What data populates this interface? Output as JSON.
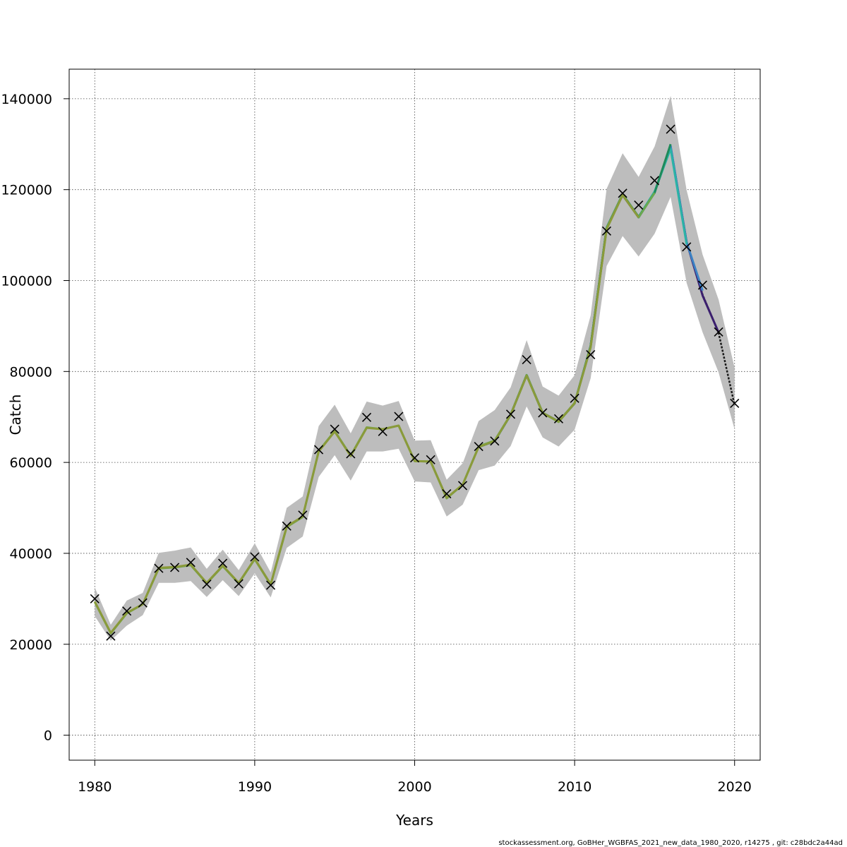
{
  "chart_data": {
    "type": "line",
    "xlabel": "Years",
    "ylabel": "Catch",
    "xlim": [
      1978.4,
      2021.6
    ],
    "ylim": [
      -5500,
      146500
    ],
    "x_ticks": [
      1980,
      1990,
      2000,
      2010,
      2020
    ],
    "y_ticks": [
      0,
      20000,
      40000,
      60000,
      80000,
      100000,
      120000,
      140000
    ],
    "grid": true,
    "observed": {
      "marker": "x",
      "points": [
        [
          1980,
          30000
        ],
        [
          1981,
          21800
        ],
        [
          1982,
          27300
        ],
        [
          1983,
          29100
        ],
        [
          1984,
          36700
        ],
        [
          1985,
          36900
        ],
        [
          1986,
          38000
        ],
        [
          1987,
          33200
        ],
        [
          1988,
          37800
        ],
        [
          1989,
          33300
        ],
        [
          1990,
          39200
        ],
        [
          1991,
          33000
        ],
        [
          1992,
          46000
        ],
        [
          1993,
          48400
        ],
        [
          1994,
          62800
        ],
        [
          1995,
          67300
        ],
        [
          1996,
          61900
        ],
        [
          1997,
          69900
        ],
        [
          1998,
          66800
        ],
        [
          1999,
          70100
        ],
        [
          2000,
          61000
        ],
        [
          2001,
          60600
        ],
        [
          2002,
          53100
        ],
        [
          2003,
          54900
        ],
        [
          2004,
          63500
        ],
        [
          2005,
          64700
        ],
        [
          2006,
          70600
        ],
        [
          2007,
          82600
        ],
        [
          2008,
          70900
        ],
        [
          2009,
          69600
        ],
        [
          2010,
          74100
        ],
        [
          2011,
          83700
        ],
        [
          2012,
          110900
        ],
        [
          2013,
          119200
        ],
        [
          2014,
          116600
        ],
        [
          2015,
          122000
        ],
        [
          2016,
          133300
        ],
        [
          2017,
          107400
        ],
        [
          2018,
          99000
        ],
        [
          2019,
          88700
        ],
        [
          2020,
          73000
        ]
      ]
    },
    "estimate_years": [
      1980,
      1981,
      1982,
      1983,
      1984,
      1985,
      1986,
      1987,
      1988,
      1989,
      1990,
      1991,
      1992,
      1993,
      1994,
      1995,
      1996,
      1997,
      1998,
      1999,
      2000,
      2001,
      2002,
      2003,
      2004,
      2005,
      2006,
      2007,
      2008,
      2009,
      2010,
      2011,
      2012,
      2013,
      2014,
      2015,
      2016,
      2017,
      2018,
      2019,
      2020
    ],
    "ci_upper": [
      32500,
      24300,
      29600,
      31300,
      40100,
      40600,
      41300,
      36600,
      40800,
      36300,
      42200,
      35800,
      50000,
      52500,
      68000,
      72700,
      66400,
      73400,
      72500,
      73500,
      64800,
      64900,
      56200,
      59800,
      69100,
      71500,
      76500,
      86900,
      76700,
      74700,
      79200,
      92300,
      120200,
      128000,
      122800,
      129500,
      140600,
      119900,
      105700,
      95800,
      80800
    ],
    "ci_lower": [
      26200,
      20800,
      24100,
      26400,
      33500,
      33500,
      33900,
      30400,
      34100,
      30600,
      35600,
      30300,
      41200,
      43700,
      56800,
      61600,
      56000,
      62400,
      62400,
      63000,
      55800,
      55600,
      48100,
      50700,
      58300,
      59300,
      63600,
      72300,
      65500,
      63500,
      67200,
      78500,
      103200,
      109800,
      105300,
      110300,
      118400,
      99500,
      88600,
      79800,
      67300
    ],
    "series": [
      {
        "color": "#1a1a1a",
        "x": [
          2004,
          2005,
          2006,
          2007,
          2008,
          2009,
          2010,
          2011,
          2012,
          2013,
          2014,
          2015,
          2016,
          2017,
          2018,
          2019,
          2020
        ],
        "values": [
          63400,
          64600,
          70400,
          79200,
          70800,
          69000,
          73000,
          85500,
          111500,
          118900,
          114000,
          119500,
          129500,
          108600,
          96900,
          88500,
          72600
        ],
        "dashed": true
      },
      {
        "color": "#3b1f6e",
        "x": [
          2004,
          2005,
          2006,
          2007,
          2008,
          2009,
          2010,
          2011,
          2012,
          2013,
          2014,
          2015,
          2016,
          2017,
          2018,
          2019
        ],
        "values": [
          63400,
          64700,
          70500,
          79200,
          70900,
          69000,
          73000,
          85600,
          111600,
          118800,
          113900,
          119400,
          129500,
          108500,
          96700,
          88600
        ]
      },
      {
        "color": "#3b82c4",
        "x": [
          2004,
          2005,
          2006,
          2007,
          2008,
          2009,
          2010,
          2011,
          2012,
          2013,
          2014,
          2015,
          2016,
          2017,
          2018
        ],
        "values": [
          63400,
          64700,
          70500,
          79200,
          70900,
          69000,
          73000,
          85600,
          111600,
          118900,
          113900,
          119400,
          129600,
          108400,
          97800
        ]
      },
      {
        "color": "#2bb3a6",
        "x": [
          2004,
          2005,
          2006,
          2007,
          2008,
          2009,
          2010,
          2011,
          2012,
          2013,
          2014,
          2015,
          2016,
          2017
        ],
        "values": [
          63400,
          64700,
          70500,
          79200,
          70900,
          69000,
          73000,
          85600,
          111600,
          118900,
          114000,
          119600,
          129000,
          108000
        ]
      },
      {
        "color": "#1e8a5a",
        "x": [
          2004,
          2005,
          2006,
          2007,
          2008,
          2009,
          2010,
          2011,
          2012,
          2013,
          2014,
          2015,
          2016
        ],
        "values": [
          63400,
          64700,
          70500,
          79200,
          70900,
          69000,
          73000,
          85600,
          111600,
          119000,
          114000,
          119300,
          130000
        ]
      },
      {
        "color": "#6aa84f",
        "x": [
          1980,
          1981,
          1982,
          1983,
          1984,
          1985,
          1986,
          1987,
          1988,
          1989,
          1990,
          1991,
          1992,
          1993,
          1994,
          1995,
          1996,
          1997,
          1998,
          1999,
          2000,
          2001,
          2002,
          2003,
          2004,
          2005,
          2006,
          2007,
          2008,
          2009,
          2010,
          2011,
          2012,
          2013,
          2014,
          2015
        ],
        "values": [
          29300,
          22400,
          26800,
          28800,
          36700,
          36900,
          37400,
          33400,
          37200,
          33400,
          38700,
          33100,
          45800,
          48000,
          62500,
          66900,
          61500,
          67700,
          67300,
          68100,
          60300,
          60200,
          52100,
          55100,
          63500,
          64800,
          70500,
          79200,
          70900,
          68900,
          73100,
          85300,
          111500,
          118900,
          113900,
          119300
        ]
      },
      {
        "color": "#8a9a3a",
        "x": [
          1980,
          1981,
          1982,
          1983,
          1984,
          1985,
          1986,
          1987,
          1988,
          1989,
          1990,
          1991,
          1992,
          1993,
          1994,
          1995,
          1996,
          1997,
          1998,
          1999,
          2000,
          2001,
          2002,
          2003,
          2004,
          2005,
          2006,
          2007,
          2008,
          2009,
          2010,
          2011,
          2012,
          2013,
          2014
        ],
        "values": [
          29400,
          22500,
          26900,
          28800,
          36800,
          37000,
          37500,
          33500,
          37300,
          33500,
          38800,
          33200,
          45900,
          48100,
          62400,
          66800,
          61400,
          67600,
          67300,
          68100,
          60300,
          60200,
          52200,
          55100,
          63400,
          64700,
          70500,
          79100,
          70900,
          69000,
          73000,
          85400,
          111300,
          118800,
          113900
        ]
      }
    ]
  },
  "footer": "stockassessment.org, GoBHer_WGBFAS_2021_new_data_1980_2020, r14275 , git: c28bdc2a44ad"
}
